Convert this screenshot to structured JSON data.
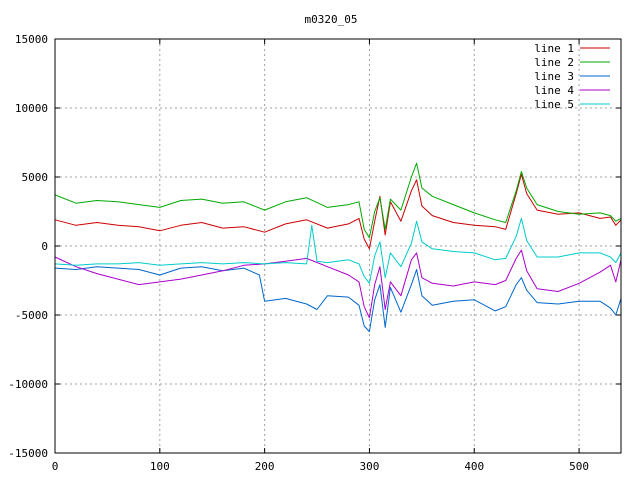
{
  "chart_data": {
    "type": "line",
    "title": "m0320_05",
    "xlabel": "",
    "ylabel": "",
    "xlim": [
      0,
      540
    ],
    "ylim": [
      -15000,
      15000
    ],
    "x_ticks": [
      0,
      100,
      200,
      300,
      400,
      500
    ],
    "y_ticks": [
      -15000,
      -10000,
      -5000,
      0,
      5000,
      10000,
      15000
    ],
    "grid": true,
    "legend_position": "top-right",
    "series": [
      {
        "name": "line 1",
        "color": "#cc0000",
        "x": [
          0,
          20,
          40,
          60,
          80,
          100,
          120,
          140,
          160,
          180,
          200,
          220,
          240,
          260,
          280,
          290,
          295,
          300,
          305,
          310,
          315,
          320,
          330,
          340,
          345,
          350,
          360,
          380,
          400,
          420,
          430,
          440,
          445,
          450,
          460,
          480,
          500,
          520,
          530,
          535,
          540
        ],
        "y": [
          1900,
          1500,
          1700,
          1500,
          1400,
          1100,
          1500,
          1700,
          1300,
          1400,
          1000,
          1600,
          1900,
          1300,
          1600,
          2000,
          500,
          -200,
          1800,
          3600,
          800,
          3200,
          1800,
          4000,
          4800,
          2900,
          2200,
          1700,
          1500,
          1400,
          1200,
          3800,
          5200,
          3800,
          2600,
          2300,
          2400,
          2000,
          2100,
          1500,
          1900
        ]
      },
      {
        "name": "line 2",
        "color": "#00aa00",
        "x": [
          0,
          20,
          40,
          60,
          80,
          100,
          120,
          140,
          160,
          180,
          200,
          220,
          240,
          260,
          280,
          290,
          295,
          300,
          305,
          310,
          315,
          320,
          330,
          340,
          345,
          350,
          360,
          380,
          400,
          420,
          430,
          440,
          445,
          450,
          460,
          480,
          500,
          520,
          530,
          535,
          540
        ],
        "y": [
          3700,
          3100,
          3300,
          3200,
          3000,
          2800,
          3300,
          3400,
          3100,
          3200,
          2600,
          3200,
          3500,
          2800,
          3000,
          3200,
          1200,
          600,
          2500,
          3500,
          1200,
          3400,
          2600,
          5000,
          6000,
          4200,
          3600,
          3000,
          2400,
          1900,
          1700,
          4000,
          5400,
          4200,
          3000,
          2500,
          2300,
          2400,
          2200,
          1800,
          2000
        ]
      },
      {
        "name": "line 3",
        "color": "#0066cc",
        "x": [
          0,
          20,
          40,
          60,
          80,
          100,
          120,
          140,
          160,
          180,
          195,
          200,
          220,
          240,
          250,
          260,
          280,
          290,
          295,
          300,
          305,
          310,
          315,
          320,
          330,
          340,
          345,
          350,
          360,
          380,
          400,
          420,
          430,
          440,
          445,
          450,
          460,
          480,
          500,
          520,
          530,
          535,
          540
        ],
        "y": [
          -1600,
          -1700,
          -1500,
          -1600,
          -1700,
          -2100,
          -1600,
          -1500,
          -1800,
          -1600,
          -2100,
          -4000,
          -3800,
          -4200,
          -4600,
          -3600,
          -3700,
          -4300,
          -5800,
          -6200,
          -3900,
          -2800,
          -5900,
          -3000,
          -4800,
          -2800,
          -1700,
          -3600,
          -4300,
          -4000,
          -3900,
          -4700,
          -4400,
          -2800,
          -2300,
          -3200,
          -4100,
          -4200,
          -4000,
          -4000,
          -4500,
          -5000,
          -3800
        ]
      },
      {
        "name": "line 4",
        "color": "#aa00cc",
        "x": [
          0,
          20,
          40,
          60,
          80,
          100,
          120,
          140,
          160,
          180,
          200,
          220,
          240,
          260,
          280,
          290,
          295,
          300,
          305,
          310,
          315,
          320,
          330,
          340,
          345,
          350,
          360,
          380,
          400,
          420,
          430,
          440,
          445,
          450,
          460,
          480,
          500,
          520,
          530,
          535,
          540
        ],
        "y": [
          -800,
          -1500,
          -2000,
          -2400,
          -2800,
          -2600,
          -2400,
          -2100,
          -1800,
          -1400,
          -1300,
          -1100,
          -900,
          -1500,
          -2100,
          -2600,
          -4400,
          -5200,
          -2800,
          -1500,
          -4600,
          -2600,
          -3600,
          -1000,
          -500,
          -2300,
          -2700,
          -2900,
          -2600,
          -2800,
          -2500,
          -900,
          -300,
          -1800,
          -3100,
          -3300,
          -2700,
          -1900,
          -1400,
          -2600,
          -1000
        ]
      },
      {
        "name": "line 5",
        "color": "#00cccc",
        "x": [
          0,
          20,
          40,
          60,
          80,
          100,
          120,
          140,
          160,
          180,
          200,
          220,
          240,
          245,
          250,
          260,
          280,
          290,
          295,
          300,
          305,
          310,
          315,
          320,
          330,
          340,
          345,
          350,
          360,
          380,
          400,
          420,
          430,
          440,
          445,
          450,
          460,
          480,
          500,
          520,
          530,
          535,
          540
        ],
        "y": [
          -1300,
          -1400,
          -1300,
          -1300,
          -1200,
          -1400,
          -1300,
          -1200,
          -1300,
          -1200,
          -1300,
          -1200,
          -1300,
          1500,
          -1100,
          -1200,
          -1000,
          -1300,
          -2200,
          -2700,
          -700,
          300,
          -2300,
          -500,
          -1500,
          200,
          1800,
          300,
          -200,
          -400,
          -500,
          -1000,
          -900,
          700,
          2000,
          400,
          -800,
          -800,
          -500,
          -500,
          -800,
          -1200,
          -500
        ]
      }
    ]
  }
}
